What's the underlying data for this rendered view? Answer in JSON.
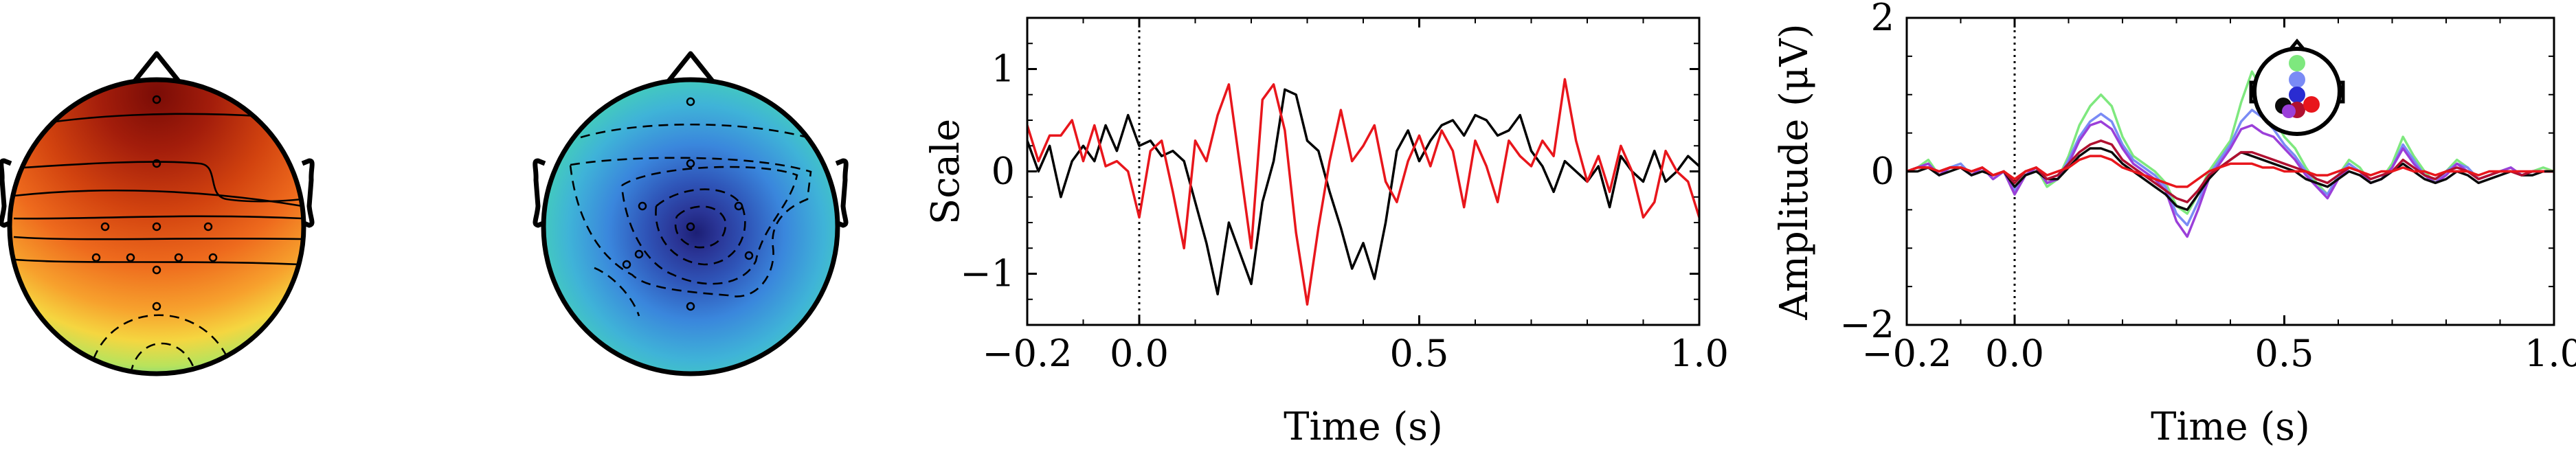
{
  "colors": {
    "series_black": "#000000",
    "series_red": "#e8161c",
    "topomap_high": "#7a0c06",
    "topomap_low": "#1c1f75"
  },
  "chart_data": [
    {
      "type": "heatmap",
      "title": "",
      "description": "scalp topographic map, head outline with nose and ears, contour lines",
      "colormap": [
        "#7a0c06",
        "#c0300e",
        "#e8611c",
        "#f39b2b",
        "#f7cf41",
        "#c7e55a",
        "#6fd48a",
        "#37b9c8"
      ],
      "sensors": 11
    },
    {
      "type": "heatmap",
      "title": "",
      "description": "scalp topographic map, central minimum, dashed contour lines",
      "colormap": [
        "#1c1f75",
        "#2f4bb0",
        "#3a78d8",
        "#46a0e6",
        "#3fc5c8",
        "#66dc9a"
      ],
      "sensors": 9
    },
    {
      "type": "line",
      "xlabel": "Time (s)",
      "ylabel": "Scale",
      "xlim": [
        -0.2,
        1.0
      ],
      "ylim": [
        -1.5,
        1.5
      ],
      "xticks": [
        -0.2,
        0.0,
        0.5,
        1.0
      ],
      "xtick_labels": [
        "−0.2",
        "0.0",
        "0.5",
        "1.0"
      ],
      "yticks": [
        -1,
        0,
        1
      ],
      "ytick_labels": [
        "−1",
        "0",
        "1"
      ],
      "vline_x": 0.0,
      "grid": false,
      "x": [
        -0.2,
        -0.18,
        -0.16,
        -0.14,
        -0.12,
        -0.1,
        -0.08,
        -0.06,
        -0.04,
        -0.02,
        0.0,
        0.02,
        0.04,
        0.06,
        0.08,
        0.1,
        0.12,
        0.14,
        0.16,
        0.18,
        0.2,
        0.22,
        0.24,
        0.26,
        0.28,
        0.3,
        0.32,
        0.34,
        0.36,
        0.38,
        0.4,
        0.42,
        0.44,
        0.46,
        0.48,
        0.5,
        0.52,
        0.54,
        0.56,
        0.58,
        0.6,
        0.62,
        0.64,
        0.66,
        0.68,
        0.7,
        0.72,
        0.74,
        0.76,
        0.78,
        0.8,
        0.82,
        0.84,
        0.86,
        0.88,
        0.9,
        0.92,
        0.94,
        0.96,
        0.98,
        1.0
      ],
      "series": [
        {
          "color": "#000000",
          "values": [
            0.3,
            0.0,
            0.25,
            -0.25,
            0.1,
            0.25,
            0.1,
            0.45,
            0.2,
            0.55,
            0.25,
            0.3,
            0.15,
            0.2,
            0.1,
            -0.3,
            -0.7,
            -1.2,
            -0.5,
            -0.8,
            -1.1,
            -0.3,
            0.1,
            0.8,
            0.75,
            0.3,
            0.2,
            -0.2,
            -0.55,
            -0.95,
            -0.7,
            -1.05,
            -0.5,
            0.2,
            0.4,
            0.1,
            0.3,
            0.45,
            0.5,
            0.35,
            0.55,
            0.5,
            0.35,
            0.4,
            0.55,
            0.2,
            0.05,
            -0.2,
            0.1,
            0.0,
            -0.1,
            0.05,
            -0.35,
            0.15,
            0.0,
            -0.1,
            0.2,
            -0.1,
            0.0,
            0.15,
            0.05
          ]
        },
        {
          "color": "#e8161c",
          "values": [
            0.45,
            0.1,
            0.35,
            0.35,
            0.5,
            0.1,
            0.45,
            0.05,
            0.1,
            0.0,
            -0.45,
            0.2,
            0.3,
            -0.2,
            -0.75,
            0.3,
            0.1,
            0.55,
            0.85,
            0.05,
            -0.75,
            0.7,
            0.85,
            0.4,
            -0.6,
            -1.3,
            -0.55,
            0.1,
            0.6,
            0.1,
            0.25,
            0.45,
            -0.1,
            -0.3,
            0.1,
            0.35,
            0.05,
            0.4,
            0.2,
            -0.35,
            0.3,
            0.05,
            -0.3,
            0.3,
            0.15,
            0.05,
            0.3,
            0.15,
            0.9,
            0.3,
            -0.1,
            0.15,
            -0.2,
            0.25,
            0.0,
            -0.45,
            -0.3,
            0.2,
            0.0,
            -0.1,
            -0.45
          ]
        }
      ]
    },
    {
      "type": "line",
      "xlabel": "Time (s)",
      "ylabel": "Amplitude (μV)",
      "xlim": [
        -0.2,
        1.0
      ],
      "ylim": [
        -2,
        2
      ],
      "xticks": [
        -0.2,
        0.0,
        0.5,
        1.0
      ],
      "xtick_labels": [
        "−0.2",
        "0.0",
        "0.5",
        "1.0"
      ],
      "yticks": [
        -2,
        0,
        2
      ],
      "ytick_labels": [
        "−2",
        "0",
        "2"
      ],
      "vline_x": 0.0,
      "grid": false,
      "inset": "sensor-layout head with colored sensor dots",
      "inset_dots": [
        "#7ee87e",
        "#7a8bf5",
        "#0b0b0b",
        "#2a2cd1",
        "#b01030",
        "#e8161c"
      ],
      "x": [
        -0.2,
        -0.18,
        -0.16,
        -0.14,
        -0.12,
        -0.1,
        -0.08,
        -0.06,
        -0.04,
        -0.02,
        0.0,
        0.02,
        0.04,
        0.06,
        0.08,
        0.1,
        0.12,
        0.14,
        0.16,
        0.18,
        0.2,
        0.22,
        0.24,
        0.26,
        0.28,
        0.3,
        0.32,
        0.34,
        0.36,
        0.38,
        0.4,
        0.42,
        0.44,
        0.46,
        0.48,
        0.5,
        0.52,
        0.54,
        0.56,
        0.58,
        0.6,
        0.62,
        0.64,
        0.66,
        0.68,
        0.7,
        0.72,
        0.74,
        0.76,
        0.78,
        0.8,
        0.82,
        0.84,
        0.86,
        0.88,
        0.9,
        0.92,
        0.94,
        0.96,
        0.98,
        1.0
      ],
      "series": [
        {
          "color": "#7ee87e",
          "values": [
            0.0,
            0.05,
            0.15,
            -0.05,
            0.05,
            0.1,
            -0.05,
            0.05,
            -0.1,
            0.0,
            -0.3,
            -0.05,
            0.05,
            -0.2,
            -0.1,
            0.2,
            0.6,
            0.85,
            1.0,
            0.85,
            0.45,
            0.2,
            0.1,
            0.0,
            -0.15,
            -0.45,
            -0.55,
            -0.3,
            0.0,
            0.2,
            0.4,
            0.9,
            1.3,
            1.05,
            0.7,
            0.45,
            0.3,
            0.05,
            -0.15,
            -0.3,
            -0.05,
            0.15,
            0.05,
            -0.15,
            -0.1,
            0.1,
            0.45,
            0.2,
            0.0,
            -0.15,
            0.0,
            0.15,
            0.05,
            -0.1,
            -0.05,
            0.0,
            0.05,
            -0.05,
            0.0,
            0.05,
            0.0
          ]
        },
        {
          "color": "#7a8bf5",
          "values": [
            0.0,
            0.05,
            0.1,
            -0.05,
            0.05,
            0.1,
            -0.05,
            0.05,
            -0.1,
            0.0,
            -0.25,
            -0.05,
            0.05,
            -0.15,
            -0.1,
            0.15,
            0.45,
            0.65,
            0.75,
            0.65,
            0.35,
            0.15,
            0.05,
            -0.05,
            -0.2,
            -0.55,
            -0.7,
            -0.4,
            -0.05,
            0.15,
            0.35,
            0.65,
            0.8,
            0.7,
            0.55,
            0.35,
            0.2,
            0.0,
            -0.2,
            -0.3,
            -0.05,
            0.1,
            0.0,
            -0.15,
            -0.1,
            0.05,
            0.35,
            0.15,
            -0.05,
            -0.15,
            0.0,
            0.1,
            0.05,
            -0.1,
            -0.05,
            0.0,
            0.05,
            -0.05,
            0.0,
            0.0,
            0.0
          ]
        },
        {
          "color": "#9b3fd9",
          "values": [
            0.0,
            0.05,
            0.1,
            -0.05,
            0.05,
            0.05,
            -0.05,
            0.05,
            -0.1,
            0.0,
            -0.3,
            -0.05,
            0.05,
            -0.15,
            -0.1,
            0.1,
            0.4,
            0.6,
            0.65,
            0.55,
            0.3,
            0.1,
            0.0,
            -0.1,
            -0.25,
            -0.65,
            -0.85,
            -0.5,
            -0.1,
            0.1,
            0.3,
            0.55,
            0.6,
            0.5,
            0.45,
            0.3,
            0.15,
            -0.05,
            -0.2,
            -0.35,
            -0.1,
            0.05,
            0.0,
            -0.15,
            -0.1,
            0.05,
            0.3,
            0.1,
            -0.05,
            -0.15,
            -0.05,
            0.1,
            0.0,
            -0.1,
            -0.05,
            0.0,
            0.05,
            -0.05,
            0.0,
            0.0,
            0.0
          ]
        },
        {
          "color": "#0b0b0b",
          "values": [
            0.0,
            0.0,
            0.05,
            -0.05,
            0.0,
            0.05,
            -0.05,
            0.0,
            -0.05,
            0.0,
            -0.2,
            -0.05,
            0.0,
            -0.1,
            -0.1,
            0.05,
            0.2,
            0.3,
            0.3,
            0.25,
            0.1,
            0.0,
            -0.1,
            -0.2,
            -0.3,
            -0.45,
            -0.5,
            -0.3,
            -0.1,
            0.05,
            0.15,
            0.25,
            0.2,
            0.15,
            0.1,
            0.05,
            0.0,
            -0.1,
            -0.15,
            -0.2,
            -0.1,
            0.0,
            -0.05,
            -0.15,
            -0.1,
            0.0,
            0.1,
            0.0,
            -0.1,
            -0.15,
            -0.1,
            0.0,
            -0.05,
            -0.15,
            -0.1,
            -0.05,
            0.0,
            -0.05,
            -0.05,
            0.0,
            0.0
          ]
        },
        {
          "color": "#b01030",
          "values": [
            0.0,
            0.05,
            0.05,
            0.0,
            0.05,
            0.05,
            0.0,
            0.05,
            -0.05,
            0.0,
            -0.15,
            0.0,
            0.05,
            -0.1,
            -0.05,
            0.1,
            0.25,
            0.35,
            0.4,
            0.35,
            0.15,
            0.05,
            -0.05,
            -0.15,
            -0.25,
            -0.35,
            -0.4,
            -0.25,
            -0.05,
            0.05,
            0.15,
            0.25,
            0.25,
            0.2,
            0.15,
            0.1,
            0.05,
            0.0,
            -0.1,
            -0.15,
            -0.05,
            0.05,
            0.0,
            -0.1,
            -0.05,
            0.0,
            0.15,
            0.05,
            -0.05,
            -0.1,
            0.0,
            0.05,
            0.0,
            -0.1,
            -0.05,
            0.0,
            0.0,
            -0.05,
            0.0,
            0.0,
            0.0
          ]
        },
        {
          "color": "#e8161c",
          "values": [
            0.0,
            0.05,
            0.05,
            0.0,
            0.05,
            0.05,
            0.0,
            0.05,
            -0.05,
            0.0,
            -0.1,
            0.0,
            0.05,
            -0.05,
            0.0,
            0.05,
            0.15,
            0.2,
            0.2,
            0.15,
            0.05,
            0.0,
            -0.05,
            -0.1,
            -0.15,
            -0.2,
            -0.2,
            -0.1,
            0.0,
            0.05,
            0.1,
            0.1,
            0.1,
            0.05,
            0.05,
            0.0,
            0.0,
            0.0,
            -0.05,
            -0.05,
            0.0,
            0.05,
            0.0,
            -0.05,
            0.0,
            0.0,
            0.05,
            0.0,
            0.0,
            -0.05,
            0.0,
            0.0,
            0.0,
            -0.05,
            0.0,
            0.0,
            0.0,
            0.0,
            0.0,
            0.0,
            0.0
          ]
        }
      ]
    }
  ]
}
